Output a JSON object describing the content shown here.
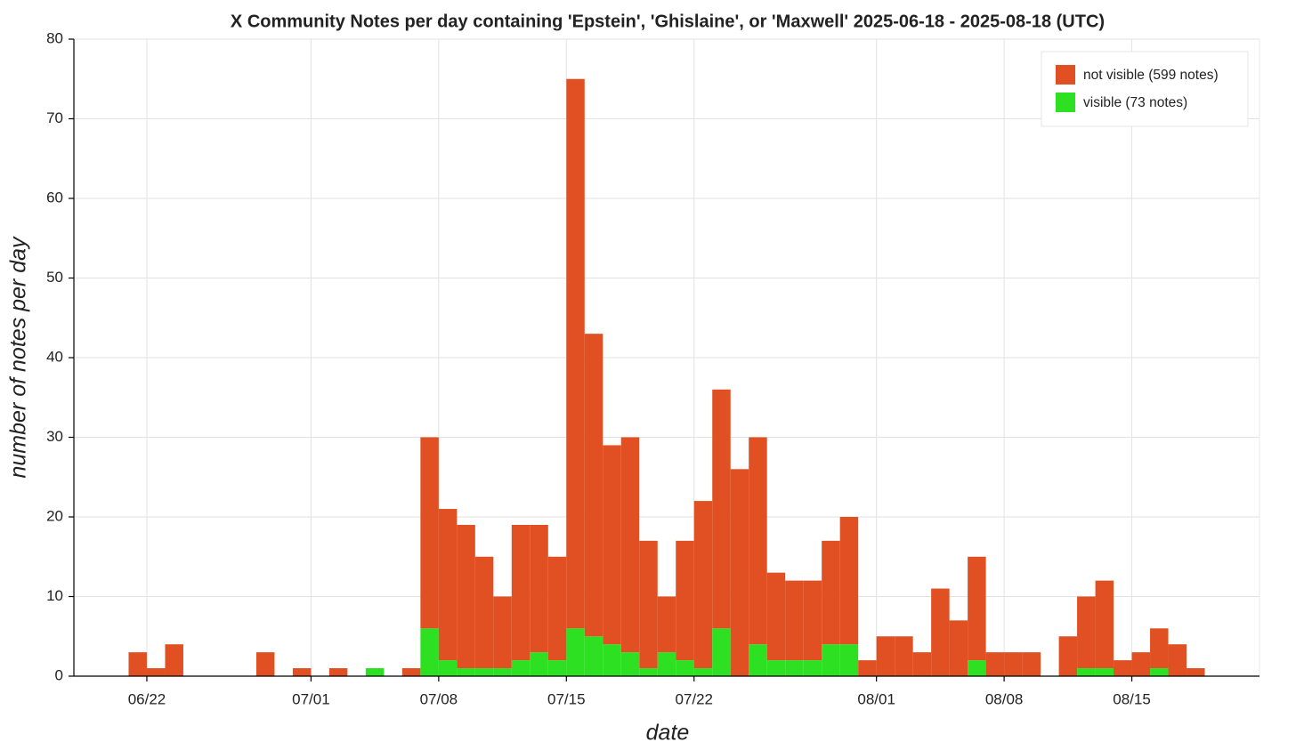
{
  "chart_data": {
    "type": "bar",
    "stacked": true,
    "title": "X Community Notes per day containing 'Epstein', 'Ghislaine', or 'Maxwell' 2025-06-18 - 2025-08-18 (UTC)",
    "x_label": "date",
    "y_label": "number of notes per day",
    "x": [
      "06/21",
      "06/22",
      "06/23",
      "06/28",
      "06/30",
      "07/02",
      "07/04",
      "07/06",
      "07/07",
      "07/08",
      "07/09",
      "07/10",
      "07/11",
      "07/12",
      "07/13",
      "07/14",
      "07/15",
      "07/16",
      "07/17",
      "07/18",
      "07/19",
      "07/20",
      "07/21",
      "07/22",
      "07/23",
      "07/24",
      "07/25",
      "07/26",
      "07/27",
      "07/28",
      "07/29",
      "07/30",
      "07/31",
      "08/01",
      "08/02",
      "08/03",
      "08/04",
      "08/05",
      "08/06",
      "08/07",
      "08/08",
      "08/09",
      "08/11",
      "08/12",
      "08/13",
      "08/14",
      "08/15",
      "08/16",
      "08/17",
      "08/18"
    ],
    "series": [
      {
        "name": "visible (73 notes)",
        "color": "#2ee022",
        "values": [
          0,
          0,
          0,
          0,
          0,
          0,
          1,
          0,
          6,
          2,
          1,
          1,
          1,
          2,
          3,
          2,
          6,
          5,
          4,
          3,
          1,
          3,
          2,
          1,
          6,
          0,
          4,
          2,
          2,
          2,
          4,
          4,
          0,
          0,
          0,
          0,
          0,
          0,
          2,
          0,
          0,
          0,
          0,
          1,
          1,
          0,
          0,
          1,
          0,
          0
        ]
      },
      {
        "name": "not visible (599 notes)",
        "color": "#e05022",
        "values": [
          3,
          1,
          4,
          3,
          1,
          1,
          0,
          1,
          24,
          19,
          18,
          14,
          9,
          17,
          16,
          13,
          69,
          38,
          25,
          27,
          16,
          7,
          15,
          21,
          30,
          26,
          26,
          11,
          10,
          10,
          13,
          16,
          2,
          5,
          5,
          3,
          11,
          7,
          13,
          3,
          3,
          3,
          5,
          9,
          11,
          2,
          3,
          5,
          4,
          1
        ]
      }
    ],
    "legend_order": [
      1,
      0
    ],
    "xlim": [
      "06/18",
      "08/22"
    ],
    "xticks": [
      "06/22",
      "07/01",
      "07/08",
      "07/15",
      "07/22",
      "08/01",
      "08/08",
      "08/15"
    ],
    "ylim": [
      0,
      80
    ],
    "yticks": [
      0,
      10,
      20,
      30,
      40,
      50,
      60,
      70,
      80
    ],
    "grid": true,
    "legend_position": "upper right"
  }
}
